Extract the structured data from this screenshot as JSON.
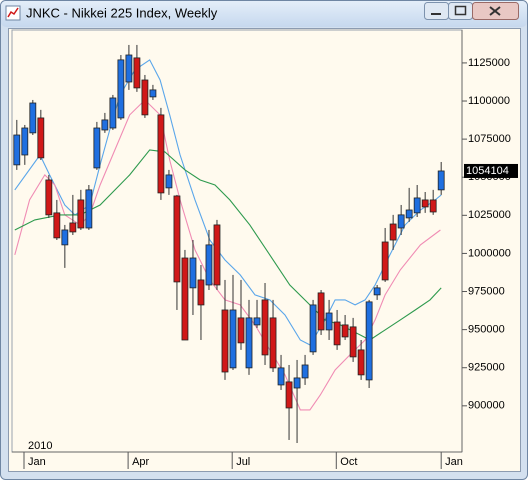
{
  "chart_data": {
    "type": "candlestick",
    "title": "JNKC - Nikkei 225 Index, Weekly",
    "year_label": "2010",
    "x": [
      0,
      1,
      2,
      3,
      4,
      5,
      6,
      7,
      8,
      9,
      10,
      11,
      12,
      13,
      14,
      15,
      16,
      17,
      18,
      19,
      20,
      21,
      22,
      23,
      24,
      25,
      26,
      27,
      28,
      29,
      30,
      31,
      32,
      33,
      34,
      35,
      36,
      37,
      38,
      39,
      40,
      41,
      42,
      43,
      44,
      45,
      46,
      47,
      48,
      49,
      50,
      51,
      52,
      53
    ],
    "open": [
      1058100,
      1064600,
      1079100,
      1088900,
      1048200,
      1026600,
      1005600,
      1020000,
      1035100,
      1016700,
      1056100,
      1081000,
      1082300,
      1088900,
      1112500,
      1128300,
      1113800,
      1102700,
      1090900,
      1043000,
      1037700,
      997000,
      977400,
      982600,
      979300,
      1018700,
      962900,
      924900,
      957700,
      924900,
      953100,
      969500,
      957700,
      913700,
      915700,
      911700,
      918300,
      935400,
      974100,
      949800,
      955000,
      953100,
      951800,
      936700,
      917000,
      972800,
      1007500,
      1019300,
      1016700,
      1023300,
      1026600,
      1035100,
      1035100,
      1041700
    ],
    "high": [
      1087600,
      1084300,
      1100700,
      1094200,
      1051500,
      1035100,
      1018700,
      1038400,
      1041700,
      1044900,
      1086300,
      1092200,
      1104000,
      1130200,
      1136800,
      1136800,
      1117100,
      1110600,
      1095500,
      1054800,
      1038400,
      1002300,
      1008800,
      992400,
      1015400,
      1022000,
      982600,
      985900,
      982600,
      969500,
      969500,
      980600,
      969500,
      933400,
      926800,
      930100,
      933400,
      969500,
      976000,
      969500,
      962900,
      959600,
      957700,
      943200,
      969500,
      979300,
      1016700,
      1025300,
      1031800,
      1043000,
      1044900,
      1040300,
      1041700,
      1060000
    ],
    "low": [
      1054800,
      1058100,
      1077700,
      1061300,
      1023300,
      1008800,
      990500,
      1012100,
      1015400,
      1015400,
      1054800,
      1079100,
      1081000,
      1087600,
      1107300,
      1106000,
      1088900,
      1100700,
      1035100,
      1038400,
      962900,
      943200,
      959600,
      943200,
      976000,
      976000,
      917000,
      923500,
      936700,
      920300,
      951100,
      926800,
      922200,
      910400,
      877600,
      875600,
      913700,
      933400,
      946500,
      943200,
      936700,
      943200,
      928800,
      917000,
      911700,
      969500,
      981300,
      1002300,
      1012100,
      1020700,
      1023900,
      1026600,
      1025300,
      1038400
    ],
    "close": [
      1077700,
      1082300,
      1098700,
      1062700,
      1025300,
      1010200,
      1015400,
      1014100,
      1016700,
      1041700,
      1082300,
      1087600,
      1102000,
      1127000,
      1130200,
      1108600,
      1090900,
      1107300,
      1039700,
      1051500,
      981300,
      943200,
      997000,
      966200,
      1005600,
      979300,
      922200,
      962900,
      941300,
      957700,
      957700,
      933400,
      924900,
      924900,
      898600,
      918300,
      926800,
      966200,
      949800,
      960900,
      940000,
      945200,
      932100,
      920300,
      968200,
      977400,
      982600,
      1008800,
      1025300,
      1028500,
      1036400,
      1030500,
      1027200,
      1054104
    ],
    "up_color": "#1f6fe0",
    "down_color": "#d01818",
    "moving_averages": [
      {
        "color": "#5aa6ea",
        "x": [
          -0.25,
          2.9,
          4.1,
          6,
          7.25,
          9.1,
          10.4,
          11.6,
          12.9,
          14.75,
          16.6,
          17.9,
          19.1,
          20.4,
          22.25,
          24.1,
          26,
          27.9,
          29.75,
          31.6,
          33.5,
          35.4,
          36.6,
          38.5,
          39.75,
          41,
          42.25,
          43.5,
          44.75,
          46.6,
          48.5,
          50.4,
          52.25,
          53
        ],
        "values": [
          1041700,
          1064600,
          1051500,
          1031800,
          1025300,
          1031800,
          1058100,
          1081000,
          1104000,
          1120400,
          1127000,
          1113800,
          1090900,
          1064600,
          1035100,
          1008800,
          995700,
          985900,
          972800,
          969500,
          959600,
          943200,
          940000,
          956400,
          969500,
          969500,
          966200,
          969500,
          979300,
          999000,
          1018700,
          1028500,
          1035100,
          1038400
        ]
      },
      {
        "color": "#f08cb4",
        "x": [
          -0.25,
          1.6,
          3.5,
          4.75,
          6,
          7.9,
          9.1,
          10.4,
          12.25,
          14.1,
          16,
          17.9,
          19.1,
          20.4,
          22.25,
          24.1,
          26,
          27.9,
          29.75,
          31.6,
          33.5,
          35.4,
          36.6,
          37.9,
          39.75,
          41.6,
          43.5,
          44.75,
          46,
          47.9,
          50.4,
          52.9
        ],
        "values": [
          999000,
          1035100,
          1051500,
          1044900,
          1025300,
          1018700,
          1025300,
          1044900,
          1067900,
          1090900,
          1100700,
          1090900,
          1061300,
          1035100,
          1002300,
          982600,
          969500,
          966200,
          953100,
          936700,
          920300,
          897300,
          897300,
          907100,
          923500,
          933400,
          943200,
          956400,
          972800,
          989200,
          1005600,
          1015400
        ]
      },
      {
        "color": "#2e9a4e",
        "x": [
          -0.25,
          2.25,
          5.4,
          7.9,
          10.4,
          14.1,
          16.6,
          18.5,
          21,
          22.9,
          24.75,
          26.6,
          29.1,
          31.6,
          34.1,
          36.6,
          38.5,
          40.4,
          42.9,
          44.1,
          46,
          47.9,
          49.75,
          51.6,
          53
        ],
        "values": [
          1015400,
          1022000,
          1025300,
          1025300,
          1031800,
          1051500,
          1067900,
          1066600,
          1054800,
          1048200,
          1044900,
          1035100,
          1018700,
          999000,
          979300,
          966200,
          956400,
          953100,
          946500,
          943200,
          949800,
          956400,
          962900,
          969500,
          977400
        ]
      }
    ],
    "xlim": [
      -0.6,
      55.6
    ],
    "ylim": [
      869700,
      1146600
    ],
    "yticks": [
      900000,
      925000,
      950000,
      975000,
      1000000,
      1025000,
      1050000,
      1075000,
      1100000,
      1125000
    ],
    "xticks": [
      {
        "value": 0.9,
        "label": "Jan"
      },
      {
        "value": 13.9,
        "label": "Apr"
      },
      {
        "value": 26.9,
        "label": "Jul"
      },
      {
        "value": 39.9,
        "label": "Oct"
      },
      {
        "value": 53,
        "label": "Jan"
      }
    ]
  }
}
